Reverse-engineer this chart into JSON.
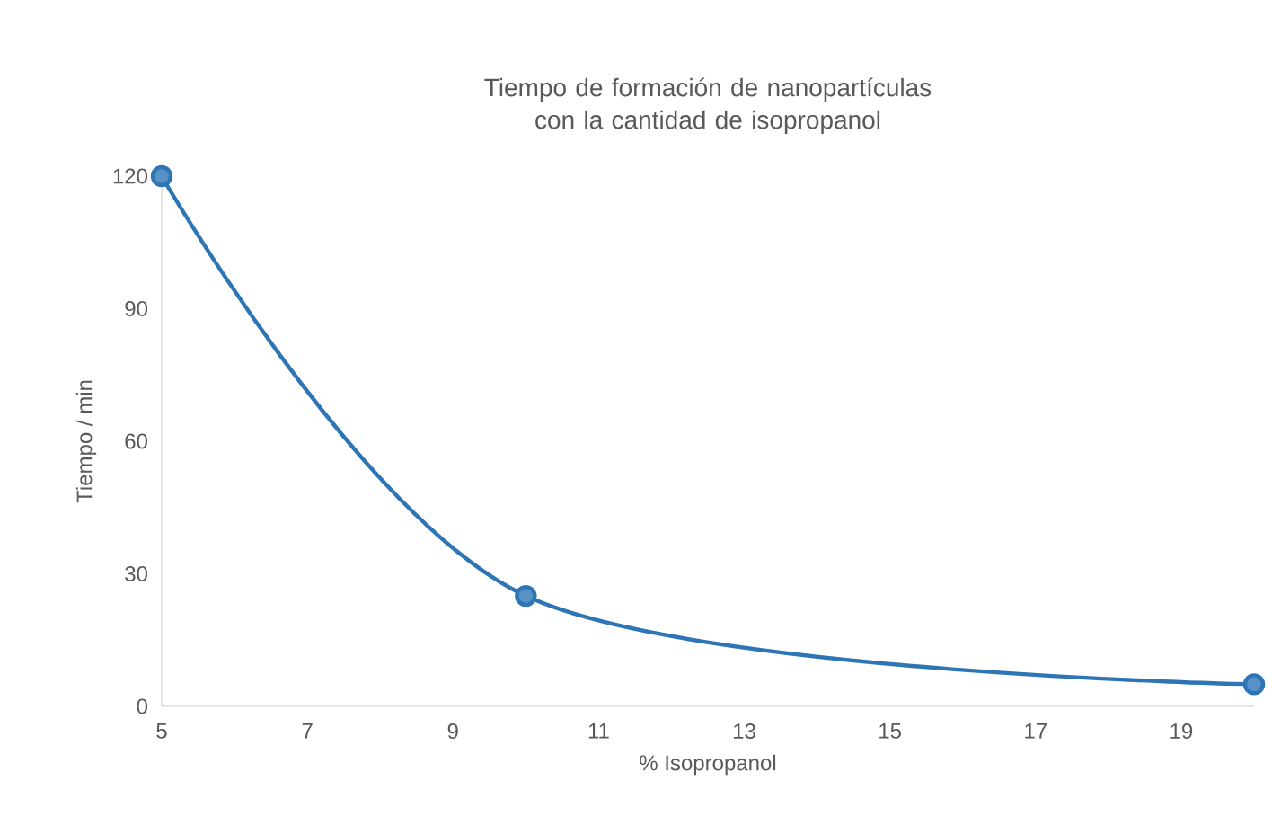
{
  "chart_data": {
    "type": "line",
    "title": "Tiempo de formación de nanopartículas con la cantidad de isopropanol",
    "xlabel": "% Isopropanol",
    "ylabel": "Tiempo / min",
    "x": [
      5,
      10,
      20
    ],
    "series": [
      {
        "color": "#2e75b6",
        "values": [
          120,
          25,
          5
        ]
      }
    ],
    "xlim": [
      5,
      20
    ],
    "xticks": [
      5,
      7,
      9,
      11,
      13,
      15,
      17,
      19
    ],
    "ylim": [
      0,
      120
    ],
    "yticks": [
      0,
      30,
      60,
      90,
      120
    ],
    "grid": false,
    "marker": "circle",
    "line_style": "solid"
  }
}
